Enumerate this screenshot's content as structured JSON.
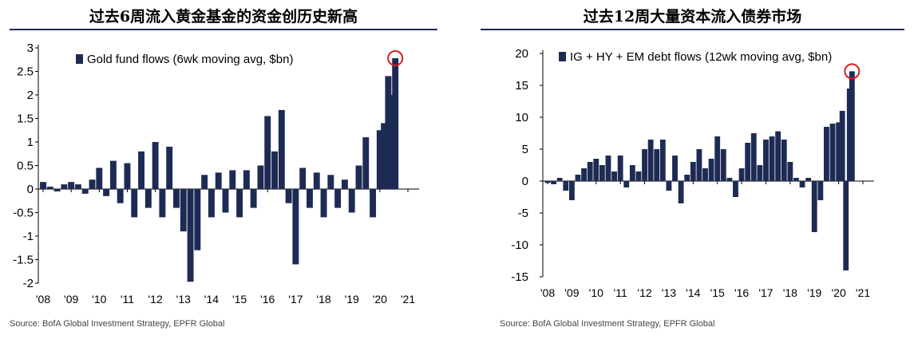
{
  "charts": [
    {
      "title": "过去6周流入黄金基金的资金创历史新高",
      "source": "Source: BofA Global Investment Strategy, EPFR Global",
      "bar_color": "#1d2b54",
      "highlight_color": "#d62020"
    },
    {
      "title": "过去12周大量资本流入债券市场",
      "source": "Source: BofA Global Investment Strategy, EPFR Global",
      "bar_color": "#1d2b54",
      "highlight_color": "#d62020"
    }
  ],
  "chart_data": [
    {
      "type": "bar",
      "title": "过去6周流入黄金基金的资金创历史新高",
      "legend": "Gold fund flows (6wk moving avg, $bn)",
      "legend_position": "top-left",
      "xlabel": "",
      "ylabel": "",
      "ylim": [
        -2,
        3
      ],
      "yticks": [
        3,
        2.5,
        2,
        1.5,
        1,
        0.5,
        0,
        -0.5,
        -1,
        -1.5,
        -2
      ],
      "ytick_labels": [
        "3",
        "2.5",
        "2",
        "1.5",
        "1",
        "0.5",
        "0",
        "-0.5",
        "-1",
        "-1.5",
        "-2"
      ],
      "xticks": [
        "'08",
        "'09",
        "'10",
        "'11",
        "'12",
        "'13",
        "'14",
        "'15",
        "'16",
        "'17",
        "'18",
        "'19",
        "'20",
        "'21"
      ],
      "xlim": [
        2008,
        2021
      ],
      "grid": false,
      "highlight": {
        "x": 2020.55,
        "y": 2.78
      },
      "series": [
        {
          "x": [
            2008.0,
            2008.25,
            2008.5,
            2008.75,
            2009.0,
            2009.25,
            2009.5,
            2009.75,
            2010.0,
            2010.25,
            2010.5,
            2010.75,
            2011.0,
            2011.25,
            2011.5,
            2011.75,
            2012.0,
            2012.25,
            2012.5,
            2012.75,
            2013.0,
            2013.25,
            2013.5,
            2013.75,
            2014.0,
            2014.25,
            2014.5,
            2014.75,
            2015.0,
            2015.25,
            2015.5,
            2015.75,
            2016.0,
            2016.25,
            2016.5,
            2016.75,
            2017.0,
            2017.25,
            2017.5,
            2017.75,
            2018.0,
            2018.25,
            2018.5,
            2018.75,
            2019.0,
            2019.25,
            2019.5,
            2019.75,
            2020.0,
            2020.15,
            2020.3,
            2020.45,
            2020.55
          ],
          "values": [
            0.15,
            0.05,
            -0.05,
            0.1,
            0.15,
            0.1,
            -0.1,
            0.2,
            0.45,
            -0.15,
            0.6,
            -0.3,
            0.55,
            -0.6,
            0.8,
            -0.4,
            1.0,
            -0.6,
            0.9,
            -0.4,
            -0.9,
            -1.97,
            -1.3,
            0.3,
            -0.6,
            0.35,
            -0.5,
            0.4,
            -0.6,
            0.4,
            -0.4,
            0.5,
            1.55,
            0.8,
            1.68,
            -0.3,
            -1.6,
            0.45,
            -0.4,
            0.35,
            -0.6,
            0.3,
            -0.4,
            0.2,
            -0.5,
            0.5,
            1.1,
            -0.6,
            1.25,
            1.4,
            2.4,
            2.0,
            2.78
          ]
        }
      ]
    },
    {
      "type": "bar",
      "title": "过去12周大量资本流入债券市场",
      "legend": "IG + HY + EM debt flows (12wk moving avg, $bn)",
      "legend_position": "top-left",
      "xlabel": "",
      "ylabel": "",
      "ylim": [
        -15,
        20
      ],
      "yticks": [
        20,
        15,
        10,
        5,
        0,
        -5,
        -10,
        -15
      ],
      "ytick_labels": [
        "20",
        "15",
        "10",
        "5",
        "0",
        "-5",
        "-10",
        "-15"
      ],
      "xticks": [
        "'08",
        "'09",
        "'10",
        "'11",
        "'12",
        "'13",
        "'14",
        "'15",
        "'16",
        "'17",
        "'18",
        "'19",
        "'20",
        "'21"
      ],
      "xlim": [
        2008,
        2021
      ],
      "grid": false,
      "highlight": {
        "x": 2020.55,
        "y": 17.2
      },
      "series": [
        {
          "x": [
            2008.0,
            2008.25,
            2008.5,
            2008.75,
            2009.0,
            2009.25,
            2009.5,
            2009.75,
            2010.0,
            2010.25,
            2010.5,
            2010.75,
            2011.0,
            2011.25,
            2011.5,
            2011.75,
            2012.0,
            2012.25,
            2012.5,
            2012.75,
            2013.0,
            2013.25,
            2013.5,
            2013.75,
            2014.0,
            2014.25,
            2014.5,
            2014.75,
            2015.0,
            2015.25,
            2015.5,
            2015.75,
            2016.0,
            2016.25,
            2016.5,
            2016.75,
            2017.0,
            2017.25,
            2017.5,
            2017.75,
            2018.0,
            2018.25,
            2018.5,
            2018.75,
            2019.0,
            2019.25,
            2019.5,
            2019.75,
            2020.0,
            2020.15,
            2020.3,
            2020.45,
            2020.55
          ],
          "values": [
            -0.3,
            -0.5,
            0.5,
            -1.5,
            -3.0,
            1.0,
            2.0,
            3.0,
            3.5,
            2.5,
            4.0,
            1.5,
            4.0,
            -1.0,
            2.5,
            1.5,
            5.0,
            6.5,
            5.0,
            6.5,
            -1.5,
            4.0,
            -3.5,
            1.0,
            3.0,
            5.0,
            2.0,
            3.5,
            7.0,
            5.0,
            0.5,
            -2.5,
            2.0,
            6.0,
            7.5,
            2.5,
            6.5,
            7.0,
            7.8,
            6.5,
            3.0,
            0.5,
            -1.0,
            0.5,
            -8.0,
            -3.0,
            8.5,
            9.0,
            9.2,
            11.0,
            -14.0,
            14.5,
            17.2
          ]
        }
      ]
    }
  ]
}
